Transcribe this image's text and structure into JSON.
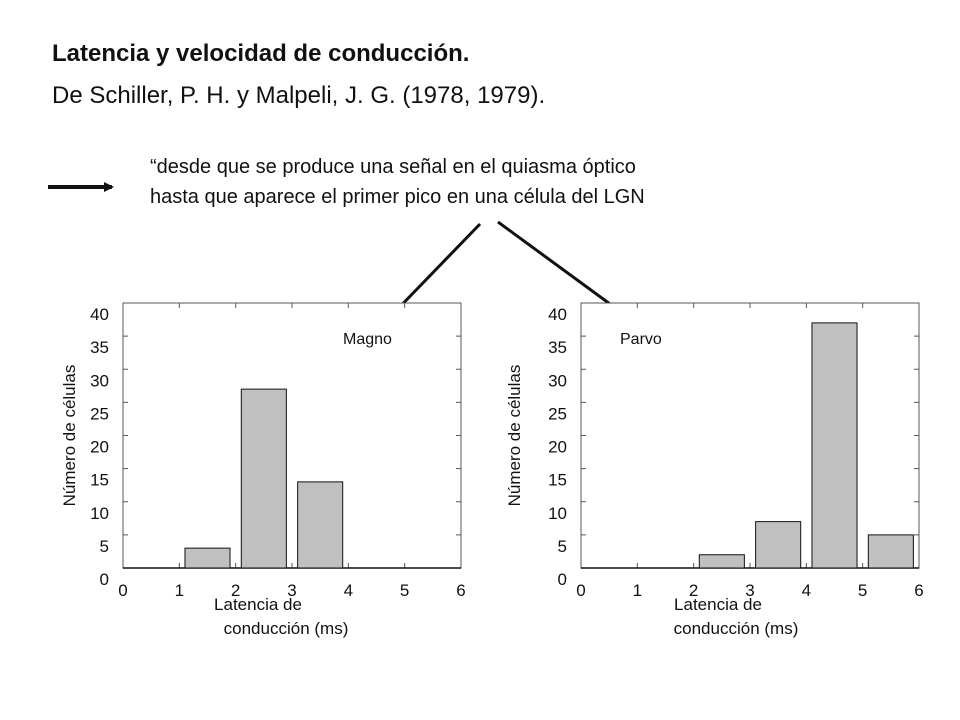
{
  "slide": {
    "title": "Latencia y velocidad de conducción.",
    "subtitle": "De Schiller, P. H. y Malpeli, J. G. (1978, 1979).",
    "quote_line1": "“desde que se produce una señal en el quiasma óptico",
    "quote_line2": "hasta que aparece el primer pico en una célula del LGN"
  },
  "chart_data": [
    {
      "type": "bar",
      "annotation": "Magno",
      "xlabel_line1": "Latencia de",
      "xlabel_line2": "conducción (ms)",
      "ylabel": "Número de células",
      "xlim": [
        0,
        6
      ],
      "ylim": [
        0,
        40
      ],
      "xticks": [
        "0",
        "1",
        "2",
        "3",
        "4",
        "5",
        "6"
      ],
      "yticks": [
        "0",
        "5",
        "10",
        "15",
        "20",
        "25",
        "30",
        "35",
        "40"
      ],
      "bar_width": 0.8,
      "x": [
        1.5,
        2.5,
        3.5
      ],
      "values": [
        3,
        27,
        13
      ],
      "bar_color": "#c0c0c0"
    },
    {
      "type": "bar",
      "annotation": "Parvo",
      "xlabel_line1": "Latencia de",
      "xlabel_line2": "conducción (ms)",
      "ylabel": "Número de células",
      "xlim": [
        0,
        6
      ],
      "ylim": [
        0,
        40
      ],
      "xticks": [
        "0",
        "1",
        "2",
        "3",
        "4",
        "5",
        "6"
      ],
      "yticks": [
        "0",
        "5",
        "10",
        "15",
        "20",
        "25",
        "30",
        "35",
        "40"
      ],
      "bar_width": 0.8,
      "x": [
        2.5,
        3.5,
        4.5,
        5.5
      ],
      "values": [
        2,
        7,
        37,
        5
      ],
      "bar_color": "#c0c0c0"
    }
  ]
}
